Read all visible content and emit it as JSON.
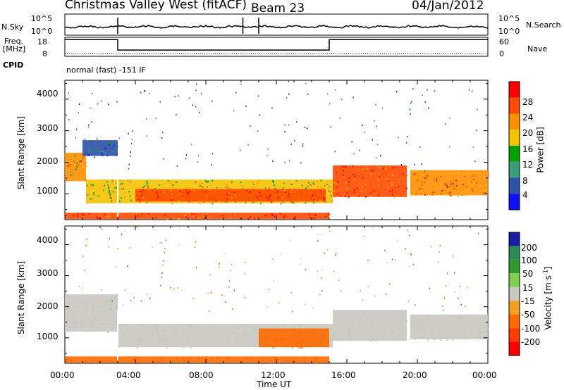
{
  "header": {
    "station": "Christmas Valley West (fitACF)",
    "beam": "Beam 23",
    "date": "04/Jan/2012"
  },
  "noise_panel": {
    "left_label": "N.Sky",
    "left_ticks": [
      "10^5",
      "10^0"
    ],
    "right_ticks": [
      "10^5",
      "10^0"
    ],
    "right_label": "N.Search"
  },
  "freq_panel": {
    "left_label_1": "Freq.",
    "left_label_2": "[MHz]",
    "left_ticks": [
      "18",
      "8"
    ],
    "right_ticks": [
      "60",
      "0"
    ],
    "right_label": "Nave"
  },
  "cpid": {
    "label": "CPID",
    "value": "normal (fast) -151 IF"
  },
  "power_panel": {
    "ylabel": "Slant Range [km]",
    "yticks": [
      "4000",
      "3000",
      "2000",
      "1000"
    ],
    "colorbar_label": "Power [dB]",
    "colorbar_ticks": [
      "28",
      "24",
      "20",
      "16",
      "12",
      "8",
      "4"
    ],
    "colorbar_colors": [
      "#ff0000",
      "#ff4a00",
      "#ff9000",
      "#f5c200",
      "#00a000",
      "#3a9c78",
      "#2b52a8",
      "#1010ff"
    ]
  },
  "velocity_panel": {
    "ylabel": "Slant Range [km]",
    "yticks": [
      "4000",
      "3000",
      "2000",
      "1000"
    ],
    "colorbar_label": "Velocity [m s",
    "colorbar_label_sup": "-1",
    "colorbar_label_end": "]",
    "colorbar_ticks": [
      "200",
      "100",
      "50",
      "15",
      "-15",
      "-50",
      "-100",
      "-200"
    ],
    "colorbar_colors": [
      "#1a1aa8",
      "#2a8a5a",
      "#2e9a2e",
      "#80d050",
      "#c8c8c0",
      "#f0a020",
      "#ff6a00",
      "#ff3a00",
      "#ff0000"
    ]
  },
  "x_axis": {
    "ticks": [
      "00:00",
      "04:00",
      "08:00",
      "12:00",
      "16:00",
      "20:00",
      "00:00"
    ],
    "xlabel": "Time UT"
  },
  "chart_data": {
    "type": "heatmap",
    "title": "Christmas Valley West (fitACF)",
    "subtitle": "Beam 23",
    "xlabel": "Time UT",
    "ylabel": "Slant Range [km]",
    "x_range_hours": [
      0,
      24
    ],
    "y_range_km": [
      180,
      4600
    ],
    "panels": [
      {
        "name": "Power",
        "colorbar_label": "Power [dB]",
        "colorbar_range": [
          0,
          30
        ],
        "bands": [
          {
            "t0": 0.0,
            "t1": 1.2,
            "r0": 1400,
            "r1": 2300,
            "level": 20
          },
          {
            "t0": 1.2,
            "t1": 15.2,
            "r0": 700,
            "r1": 1450,
            "level": 16
          },
          {
            "t0": 4.0,
            "t1": 14.8,
            "r0": 750,
            "r1": 1150,
            "level": 26
          },
          {
            "t0": 0.0,
            "t1": 15.0,
            "r0": 200,
            "r1": 400,
            "level": 26
          },
          {
            "t0": 15.2,
            "t1": 19.4,
            "r0": 900,
            "r1": 1900,
            "level": 24
          },
          {
            "t0": 19.6,
            "t1": 24.0,
            "r0": 950,
            "r1": 1750,
            "level": 22
          },
          {
            "t0": 1.0,
            "t1": 3.0,
            "r0": 2200,
            "r1": 2700,
            "level": 6
          }
        ]
      },
      {
        "name": "Velocity",
        "colorbar_label": "Velocity [m s-1]",
        "colorbar_range": [
          -200,
          200
        ],
        "bands": [
          {
            "t0": 0.0,
            "t1": 3.0,
            "r0": 1200,
            "r1": 2400,
            "level": 0
          },
          {
            "t0": 3.0,
            "t1": 15.2,
            "r0": 700,
            "r1": 1450,
            "level": 0
          },
          {
            "t0": 11.0,
            "t1": 15.0,
            "r0": 700,
            "r1": 1300,
            "level": -60
          },
          {
            "t0": 0.0,
            "t1": 15.0,
            "r0": 200,
            "r1": 400,
            "level": -60
          },
          {
            "t0": 15.2,
            "t1": 19.4,
            "r0": 900,
            "r1": 1900,
            "level": 0
          },
          {
            "t0": 19.6,
            "t1": 24.0,
            "r0": 950,
            "r1": 1750,
            "level": 0
          }
        ]
      }
    ],
    "noise_range": [
      1,
      100000
    ],
    "freq_range_mhz": [
      8,
      18
    ],
    "nave_range": [
      0,
      60
    ],
    "freq_mhz": [
      {
        "t0": 0.0,
        "t1": 3.0,
        "value": 16.8
      },
      {
        "t0": 3.0,
        "t1": 15.0,
        "value": 11.3
      },
      {
        "t0": 15.0,
        "t1": 24.0,
        "value": 16.8
      }
    ]
  }
}
